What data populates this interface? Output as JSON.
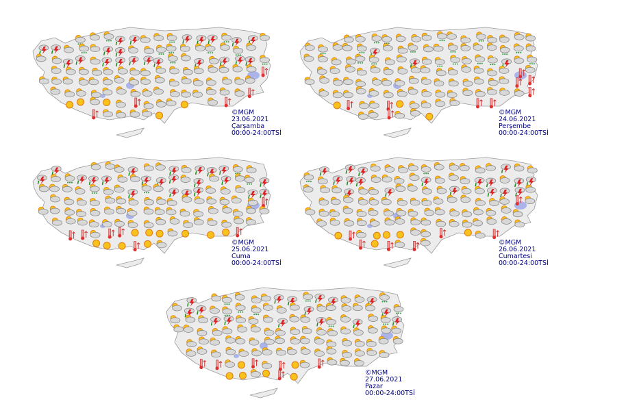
{
  "panels": [
    {
      "copyright": "©MGM",
      "date": "23.06.2021",
      "day": "Çarşamba",
      "time": "00:00-24:00TSİ"
    },
    {
      "copyright": "©MGM",
      "date": "24.06.2021",
      "day": "Perşembe",
      "time": "00:00-24:00TSİ"
    },
    {
      "copyright": "©MGM",
      "date": "25.06.2021",
      "day": "Cuma",
      "time": "00:00-24:00TSİ"
    },
    {
      "copyright": "©MGM",
      "date": "26.06.2021",
      "day": "Cumartesi",
      "time": "00:00-24:00TSİ"
    },
    {
      "copyright": "©MGM",
      "date": "27.06.2021",
      "day": "Pazar",
      "time": "00:00-24:00TSİ"
    }
  ]
}
